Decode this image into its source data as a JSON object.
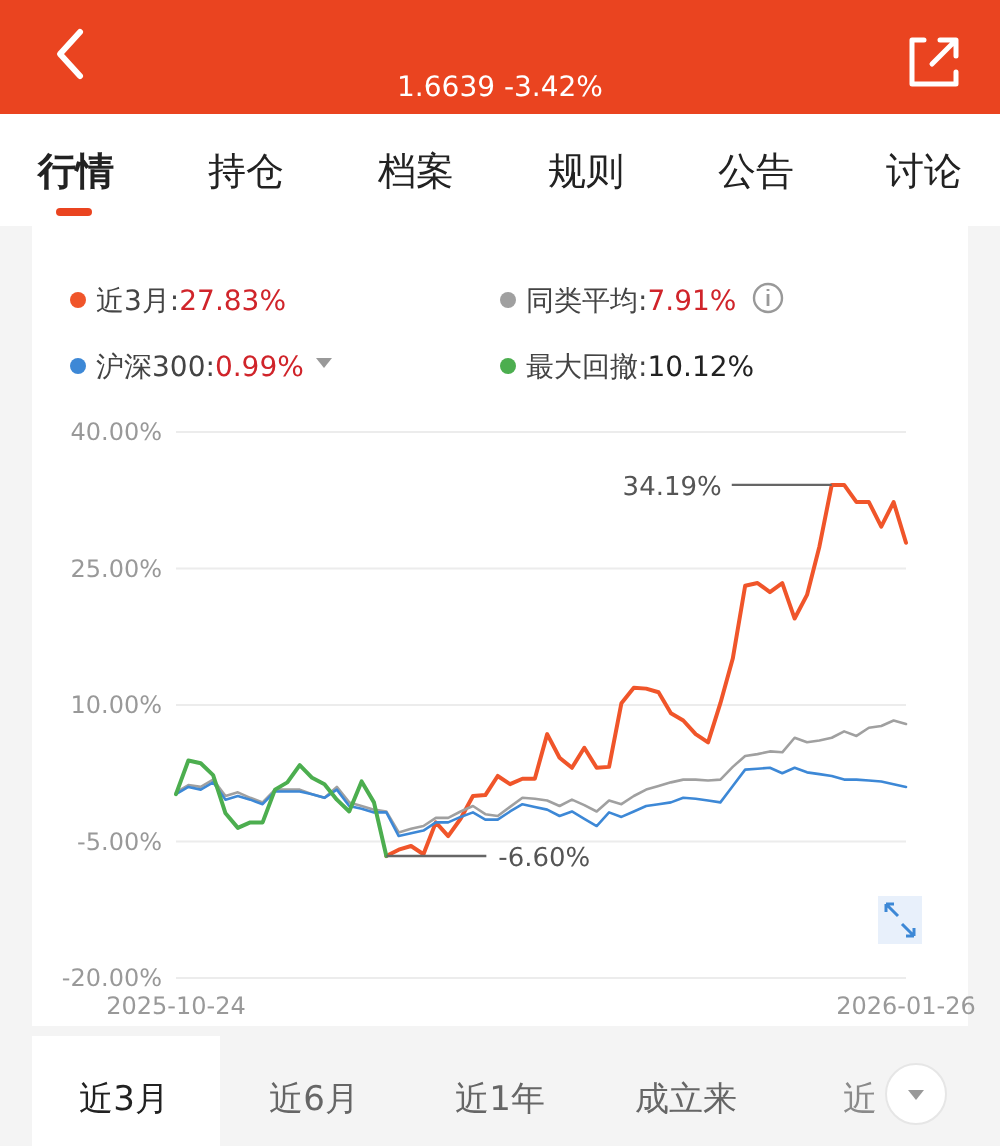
{
  "chart_data": {
    "type": "line",
    "subtitle": "1.6639 -3.42%",
    "categories": [
      "2025-10-24",
      null,
      null,
      null,
      null,
      null,
      null,
      null,
      null,
      null,
      null,
      null,
      null,
      null,
      null,
      null,
      null,
      null,
      null,
      null,
      null,
      null,
      null,
      null,
      null,
      null,
      null,
      null,
      null,
      null,
      null,
      null,
      null,
      null,
      null,
      null,
      null,
      null,
      null,
      null,
      null,
      null,
      null,
      null,
      null,
      null,
      null,
      null,
      null,
      null,
      null,
      null,
      null,
      null,
      null,
      null,
      null,
      null,
      null,
      "2026-01-26"
    ],
    "ylim": [
      -20,
      40
    ],
    "yticks": [
      {
        "value": 40,
        "label": "40.00%"
      },
      {
        "value": 25,
        "label": "25.00%"
      },
      {
        "value": 10,
        "label": "10.00%"
      },
      {
        "value": -5,
        "label": "-5.00%"
      },
      {
        "value": -20,
        "label": "-20.00%"
      }
    ],
    "grid": "y",
    "legend": "top",
    "series": [
      {
        "name": "近3月:27.83%",
        "color": "#f0552a",
        "values": [
          null,
          null,
          null,
          null,
          null,
          null,
          null,
          null,
          null,
          null,
          null,
          null,
          null,
          null,
          null,
          null,
          null,
          -6.6,
          -5.9,
          -5.5,
          -6.4,
          -2.9,
          -4.4,
          -2.5,
          0.0,
          0.1,
          2.2,
          1.3,
          1.9,
          1.9,
          6.8,
          4.2,
          3.1,
          5.3,
          3.1,
          3.2,
          10.2,
          11.9,
          11.8,
          11.4,
          9.1,
          8.3,
          6.8,
          5.9,
          10.2,
          15.1,
          23.1,
          23.4,
          22.4,
          23.4,
          19.5,
          22.1,
          27.4,
          34.19,
          34.19,
          32.3,
          32.3,
          29.6,
          32.3,
          27.83
        ]
      },
      {
        "name": "同类平均:7.91%",
        "color": "#a0a0a0",
        "values": [
          0.4,
          1.2,
          1.0,
          1.8,
          0.0,
          0.4,
          -0.2,
          -0.7,
          0.7,
          0.7,
          0.7,
          0.2,
          -0.2,
          1.0,
          -0.7,
          -1.1,
          -1.5,
          -1.7,
          -4.0,
          -3.6,
          -3.3,
          -2.4,
          -2.4,
          -1.7,
          -1.1,
          -2.0,
          -2.2,
          -1.2,
          -0.2,
          -0.3,
          -0.5,
          -1.1,
          -0.4,
          -1.0,
          -1.7,
          -0.5,
          -0.9,
          0.0,
          0.7,
          1.1,
          1.5,
          1.8,
          1.8,
          1.7,
          1.8,
          3.2,
          4.4,
          4.6,
          4.9,
          4.8,
          6.4,
          5.9,
          6.1,
          6.4,
          7.1,
          6.6,
          7.5,
          7.7,
          8.3,
          7.91
        ]
      },
      {
        "name": "沪深300:0.99%",
        "color": "#3d88d6",
        "values": [
          0.2,
          1.0,
          0.7,
          1.5,
          -0.4,
          0.0,
          -0.4,
          -0.9,
          0.5,
          0.5,
          0.5,
          0.2,
          -0.2,
          0.7,
          -1.1,
          -1.4,
          -1.8,
          -1.8,
          -4.4,
          -4.1,
          -3.8,
          -2.9,
          -2.9,
          -2.3,
          -1.8,
          -2.6,
          -2.6,
          -1.7,
          -0.9,
          -1.2,
          -1.5,
          -2.2,
          -1.7,
          -2.5,
          -3.3,
          -1.8,
          -2.3,
          -1.7,
          -1.1,
          -0.9,
          -0.7,
          -0.2,
          -0.3,
          -0.5,
          -0.7,
          1.1,
          2.9,
          3.0,
          3.1,
          2.5,
          3.1,
          2.6,
          2.4,
          2.2,
          1.8,
          1.8,
          1.7,
          1.6,
          1.3,
          0.99
        ]
      },
      {
        "name": "最大回撤:10.12%",
        "color": "#4cae4f",
        "values": [
          0.2,
          3.9,
          3.6,
          2.3,
          -1.9,
          -3.5,
          -2.9,
          -2.9,
          0.7,
          1.5,
          3.4,
          2.0,
          1.3,
          -0.4,
          -1.7,
          1.6,
          -0.7,
          -6.6,
          null,
          null,
          null,
          null,
          null,
          null,
          null,
          null,
          null,
          null,
          null,
          null,
          null,
          null,
          null,
          null,
          null,
          null,
          null,
          null,
          null,
          null,
          null,
          null,
          null,
          null,
          null,
          null,
          null,
          null,
          null,
          null,
          null,
          null,
          null,
          null,
          null,
          null,
          null,
          null,
          null,
          null
        ]
      }
    ],
    "ref_lines": [
      {
        "axis": "y",
        "value": 34.19,
        "label": "34.19%",
        "color": "#666666"
      },
      {
        "axis": "y",
        "value": -6.6,
        "label": "-6.60%",
        "color": "#666666"
      }
    ],
    "annotations": [
      "行情",
      "持仓",
      "档案",
      "规则",
      "公告",
      "讨论",
      "近3月",
      "近6月",
      "近1年",
      "成立来",
      "近"
    ]
  }
}
